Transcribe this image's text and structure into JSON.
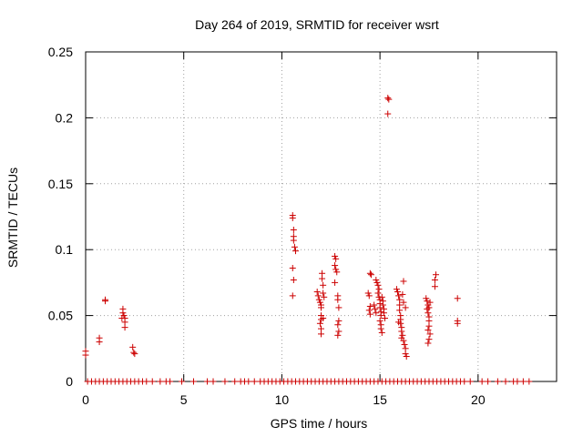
{
  "chart_data": {
    "type": "scatter",
    "title": "Day 264 of 2019, SRMTID for receiver wsrt",
    "xlabel": "GPS time / hours",
    "ylabel": "SRMTID / TECUs",
    "xlim": [
      0,
      24
    ],
    "ylim": [
      0,
      0.25
    ],
    "xticks": [
      "0",
      "5",
      "10",
      "15",
      "20"
    ],
    "yticks": [
      "0",
      "0.05",
      "0.1",
      "0.15",
      "0.2",
      "0.25"
    ],
    "grid": true,
    "marker": "+",
    "color": "#cc0000",
    "series": [
      {
        "points": [
          [
            0.0,
            0.023
          ],
          [
            0.0,
            0.02
          ],
          [
            0.7,
            0.033
          ],
          [
            0.7,
            0.03
          ],
          [
            1.0,
            0.062
          ],
          [
            1.0,
            0.061
          ],
          [
            1.9,
            0.055
          ],
          [
            1.9,
            0.052
          ],
          [
            1.95,
            0.05
          ],
          [
            2.0,
            0.048
          ],
          [
            2.0,
            0.045
          ],
          [
            2.0,
            0.041
          ],
          [
            1.85,
            0.048
          ],
          [
            2.4,
            0.026
          ],
          [
            2.45,
            0.022
          ],
          [
            2.5,
            0.021
          ],
          [
            10.55,
            0.126
          ],
          [
            10.55,
            0.124
          ],
          [
            10.6,
            0.115
          ],
          [
            10.6,
            0.11
          ],
          [
            10.6,
            0.107
          ],
          [
            10.65,
            0.102
          ],
          [
            10.7,
            0.099
          ],
          [
            10.55,
            0.086
          ],
          [
            10.6,
            0.077
          ],
          [
            10.55,
            0.065
          ],
          [
            11.8,
            0.068
          ],
          [
            11.85,
            0.065
          ],
          [
            11.9,
            0.062
          ],
          [
            11.95,
            0.06
          ],
          [
            12.0,
            0.058
          ],
          [
            12.0,
            0.056
          ],
          [
            12.0,
            0.05
          ],
          [
            12.0,
            0.047
          ],
          [
            11.95,
            0.044
          ],
          [
            12.0,
            0.04
          ],
          [
            12.0,
            0.036
          ],
          [
            12.05,
            0.082
          ],
          [
            12.05,
            0.078
          ],
          [
            12.1,
            0.073
          ],
          [
            12.1,
            0.067
          ],
          [
            12.15,
            0.064
          ],
          [
            12.1,
            0.048
          ],
          [
            12.7,
            0.095
          ],
          [
            12.75,
            0.093
          ],
          [
            12.7,
            0.088
          ],
          [
            12.75,
            0.085
          ],
          [
            12.8,
            0.083
          ],
          [
            12.7,
            0.075
          ],
          [
            12.85,
            0.065
          ],
          [
            12.85,
            0.062
          ],
          [
            12.9,
            0.056
          ],
          [
            12.9,
            0.046
          ],
          [
            12.85,
            0.043
          ],
          [
            12.9,
            0.038
          ],
          [
            12.85,
            0.035
          ],
          [
            14.4,
            0.067
          ],
          [
            14.45,
            0.065
          ],
          [
            14.5,
            0.082
          ],
          [
            14.55,
            0.081
          ],
          [
            14.5,
            0.057
          ],
          [
            14.45,
            0.054
          ],
          [
            14.5,
            0.051
          ],
          [
            14.8,
            0.077
          ],
          [
            14.85,
            0.075
          ],
          [
            14.9,
            0.073
          ],
          [
            14.95,
            0.07
          ],
          [
            14.9,
            0.067
          ],
          [
            14.95,
            0.064
          ],
          [
            15.0,
            0.062
          ],
          [
            15.0,
            0.059
          ],
          [
            15.0,
            0.056
          ],
          [
            15.05,
            0.053
          ],
          [
            15.05,
            0.05
          ],
          [
            15.0,
            0.046
          ],
          [
            15.05,
            0.043
          ],
          [
            15.05,
            0.04
          ],
          [
            15.1,
            0.037
          ],
          [
            15.1,
            0.064
          ],
          [
            15.15,
            0.061
          ],
          [
            15.15,
            0.058
          ],
          [
            15.2,
            0.055
          ],
          [
            15.2,
            0.052
          ],
          [
            14.7,
            0.058
          ],
          [
            14.75,
            0.055
          ],
          [
            14.8,
            0.052
          ],
          [
            15.25,
            0.048
          ],
          [
            15.4,
            0.215
          ],
          [
            15.45,
            0.214
          ],
          [
            15.4,
            0.203
          ],
          [
            15.85,
            0.07
          ],
          [
            15.9,
            0.068
          ],
          [
            15.95,
            0.065
          ],
          [
            16.0,
            0.062
          ],
          [
            16.0,
            0.058
          ],
          [
            16.0,
            0.054
          ],
          [
            16.05,
            0.05
          ],
          [
            16.05,
            0.047
          ],
          [
            16.05,
            0.044
          ],
          [
            16.1,
            0.041
          ],
          [
            16.1,
            0.038
          ],
          [
            16.15,
            0.035
          ],
          [
            16.2,
            0.031
          ],
          [
            16.25,
            0.028
          ],
          [
            16.3,
            0.025
          ],
          [
            16.3,
            0.021
          ],
          [
            16.35,
            0.019
          ],
          [
            16.2,
            0.076
          ],
          [
            16.15,
            0.066
          ],
          [
            16.2,
            0.06
          ],
          [
            16.3,
            0.056
          ],
          [
            15.95,
            0.045
          ],
          [
            16.1,
            0.033
          ],
          [
            17.35,
            0.063
          ],
          [
            17.4,
            0.061
          ],
          [
            17.45,
            0.058
          ],
          [
            17.4,
            0.055
          ],
          [
            17.45,
            0.052
          ],
          [
            17.5,
            0.049
          ],
          [
            17.5,
            0.046
          ],
          [
            17.5,
            0.042
          ],
          [
            17.45,
            0.039
          ],
          [
            17.55,
            0.036
          ],
          [
            17.5,
            0.032
          ],
          [
            17.45,
            0.029
          ],
          [
            17.55,
            0.06
          ],
          [
            17.5,
            0.056
          ],
          [
            17.85,
            0.081
          ],
          [
            17.8,
            0.077
          ],
          [
            17.8,
            0.072
          ],
          [
            18.95,
            0.063
          ],
          [
            18.95,
            0.046
          ],
          [
            18.95,
            0.044
          ]
        ]
      }
    ],
    "zero_line_points": [
      0.1,
      0.3,
      0.5,
      0.7,
      0.9,
      1.1,
      1.3,
      1.5,
      1.7,
      1.9,
      2.1,
      2.3,
      2.5,
      2.7,
      2.9,
      3.1,
      3.4,
      3.8,
      4.1,
      4.3,
      4.9,
      5.5,
      6.2,
      6.5,
      7.1,
      7.6,
      7.9,
      8.1,
      8.3,
      8.6,
      8.9,
      9.1,
      9.3,
      9.5,
      9.7,
      9.9,
      10.1,
      10.3,
      10.5,
      10.7,
      10.9,
      11.1,
      11.3,
      11.5,
      11.7,
      11.9,
      12.1,
      12.3,
      12.5,
      12.7,
      12.9,
      13.1,
      13.3,
      13.5,
      13.7,
      13.9,
      14.1,
      14.3,
      14.5,
      14.7,
      14.9,
      15.1,
      15.3,
      15.5,
      15.7,
      15.9,
      16.1,
      16.3,
      16.5,
      16.7,
      16.9,
      17.1,
      17.3,
      17.5,
      17.7,
      17.9,
      18.1,
      18.3,
      18.5,
      18.7,
      18.9,
      19.1,
      19.3,
      19.6,
      20.2,
      20.5,
      21.0,
      21.4,
      21.8,
      22.0,
      22.3,
      22.6
    ]
  }
}
